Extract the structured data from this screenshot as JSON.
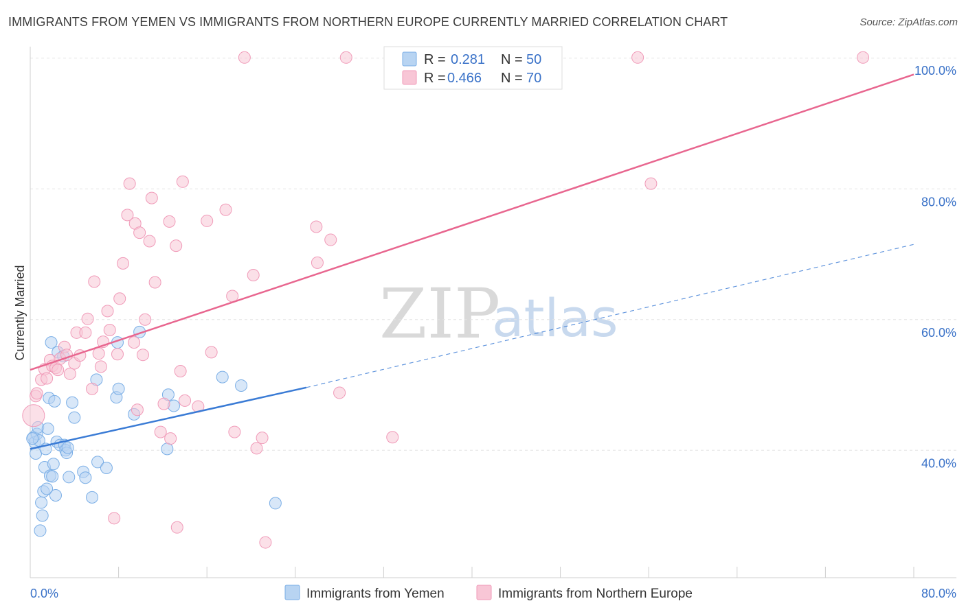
{
  "header": {
    "title": "IMMIGRANTS FROM YEMEN VS IMMIGRANTS FROM NORTHERN EUROPE CURRENTLY MARRIED CORRELATION CHART",
    "source": "Source: ZipAtlas.com"
  },
  "watermark": {
    "zip": "ZIP",
    "atlas": "atlas"
  },
  "legend": {
    "items": [
      {
        "r_label": "R =",
        "r_value": "0.281",
        "n_label": "N =",
        "n_value": "50",
        "fill": "#b8d4f2",
        "stroke": "#7aaee6"
      },
      {
        "r_label": "R =",
        "r_value": "0.466",
        "n_label": "N =",
        "n_value": "70",
        "fill": "#f8c6d6",
        "stroke": "#f09ab8"
      }
    ]
  },
  "bottom_legend": {
    "items": [
      {
        "label": "Immigrants from Yemen",
        "fill": "#b8d4f2",
        "stroke": "#7aaee6"
      },
      {
        "label": "Immigrants from Northern Europe",
        "fill": "#f8c6d6",
        "stroke": "#f09ab8"
      }
    ]
  },
  "chart_data": {
    "type": "scatter",
    "title": "IMMIGRANTS FROM YEMEN VS IMMIGRANTS FROM NORTHERN EUROPE CURRENTLY MARRIED CORRELATION CHART",
    "xlabel": "",
    "ylabel": "Currently Married",
    "xlim": [
      0,
      80
    ],
    "ylim": [
      22,
      102
    ],
    "x_tick_labels": [
      {
        "value": 0,
        "label": "0.0%"
      },
      {
        "value": 80,
        "label": "80.0%"
      }
    ],
    "x_minor_ticks": [
      0,
      8,
      16,
      24,
      32,
      40,
      48,
      56,
      64,
      72,
      80
    ],
    "y_ticks": [
      {
        "value": 100,
        "label": "100.0%"
      },
      {
        "value": 80,
        "label": "80.0%"
      },
      {
        "value": 60,
        "label": "60.0%"
      },
      {
        "value": 40,
        "label": "40.0%"
      }
    ],
    "series": [
      {
        "name": "Immigrants from Yemen",
        "color": "#3a7bd5",
        "fill": "#b8d4f2",
        "stroke": "#7aaee6",
        "trend": {
          "x0": 0,
          "y0": 40.2,
          "x1": 25,
          "y1": 49.6,
          "dash_x1": 80,
          "dash_y1": 71.5
        },
        "points": [
          [
            0.3,
            42.0
          ],
          [
            0.4,
            41.2
          ],
          [
            0.5,
            39.5
          ],
          [
            0.6,
            42.5
          ],
          [
            0.7,
            43.5
          ],
          [
            0.8,
            41.5
          ],
          [
            0.9,
            27.7
          ],
          [
            1.0,
            32.0
          ],
          [
            1.1,
            30.0
          ],
          [
            1.2,
            33.7
          ],
          [
            1.3,
            37.4
          ],
          [
            1.4,
            40.2
          ],
          [
            1.5,
            34.1
          ],
          [
            1.6,
            43.3
          ],
          [
            1.7,
            48.0
          ],
          [
            1.8,
            36.1
          ],
          [
            1.9,
            56.5
          ],
          [
            2.0,
            36.0
          ],
          [
            2.1,
            37.9
          ],
          [
            2.2,
            47.5
          ],
          [
            2.3,
            33.1
          ],
          [
            2.4,
            41.3
          ],
          [
            2.5,
            55.0
          ],
          [
            2.7,
            40.8
          ],
          [
            3.0,
            54.4
          ],
          [
            3.1,
            40.8
          ],
          [
            3.2,
            40.0
          ],
          [
            3.3,
            39.6
          ],
          [
            3.4,
            40.4
          ],
          [
            3.5,
            35.9
          ],
          [
            3.8,
            47.3
          ],
          [
            4.0,
            45.0
          ],
          [
            4.8,
            36.7
          ],
          [
            5.0,
            35.8
          ],
          [
            5.6,
            32.8
          ],
          [
            6.0,
            50.8
          ],
          [
            6.1,
            38.2
          ],
          [
            6.9,
            37.3
          ],
          [
            7.8,
            48.1
          ],
          [
            7.9,
            56.5
          ],
          [
            8.0,
            49.4
          ],
          [
            9.4,
            45.5
          ],
          [
            9.9,
            58.1
          ],
          [
            12.4,
            40.2
          ],
          [
            12.5,
            48.5
          ],
          [
            13.0,
            46.8
          ],
          [
            17.4,
            51.2
          ],
          [
            19.1,
            49.9
          ],
          [
            22.2,
            31.9
          ],
          [
            0.2,
            41.8
          ]
        ]
      },
      {
        "name": "Immigrants from Northern Europe",
        "color": "#e8668f",
        "fill": "#f8c6d6",
        "stroke": "#f09ab8",
        "trend": {
          "x0": 0,
          "y0": 52.3,
          "x1": 80,
          "y1": 97.5
        },
        "points": [
          [
            0.3,
            45.3
          ],
          [
            0.5,
            48.3
          ],
          [
            0.6,
            48.7
          ],
          [
            1.0,
            50.8
          ],
          [
            1.3,
            52.4
          ],
          [
            1.5,
            51.0
          ],
          [
            1.8,
            53.8
          ],
          [
            2.0,
            52.9
          ],
          [
            2.3,
            52.6
          ],
          [
            2.5,
            52.3
          ],
          [
            2.7,
            54.0
          ],
          [
            3.1,
            55.8
          ],
          [
            3.3,
            54.6
          ],
          [
            3.6,
            51.7
          ],
          [
            4.0,
            53.3
          ],
          [
            4.2,
            58.0
          ],
          [
            4.5,
            54.5
          ],
          [
            5.0,
            58.0
          ],
          [
            5.2,
            60.1
          ],
          [
            5.6,
            49.4
          ],
          [
            5.8,
            65.8
          ],
          [
            6.2,
            54.8
          ],
          [
            6.4,
            52.8
          ],
          [
            6.6,
            56.6
          ],
          [
            7.0,
            61.3
          ],
          [
            7.2,
            58.4
          ],
          [
            7.6,
            29.6
          ],
          [
            7.9,
            54.7
          ],
          [
            8.1,
            63.2
          ],
          [
            8.4,
            68.6
          ],
          [
            8.8,
            76.0
          ],
          [
            9.0,
            80.8
          ],
          [
            9.4,
            56.5
          ],
          [
            9.5,
            74.7
          ],
          [
            9.7,
            46.2
          ],
          [
            9.9,
            73.3
          ],
          [
            10.2,
            54.6
          ],
          [
            10.4,
            60.0
          ],
          [
            10.8,
            72.0
          ],
          [
            11.0,
            78.6
          ],
          [
            11.3,
            65.7
          ],
          [
            11.8,
            42.8
          ],
          [
            12.1,
            47.1
          ],
          [
            12.6,
            75.0
          ],
          [
            12.7,
            41.8
          ],
          [
            13.2,
            71.3
          ],
          [
            13.3,
            28.2
          ],
          [
            13.6,
            52.1
          ],
          [
            13.8,
            81.1
          ],
          [
            14.0,
            47.6
          ],
          [
            15.2,
            46.7
          ],
          [
            16.0,
            75.1
          ],
          [
            16.4,
            55.0
          ],
          [
            17.7,
            76.8
          ],
          [
            18.3,
            63.6
          ],
          [
            18.5,
            42.8
          ],
          [
            19.4,
            100.1
          ],
          [
            20.2,
            66.8
          ],
          [
            20.5,
            40.3
          ],
          [
            21.0,
            41.9
          ],
          [
            21.3,
            25.9
          ],
          [
            25.9,
            74.2
          ],
          [
            26.0,
            68.7
          ],
          [
            27.2,
            72.2
          ],
          [
            28.0,
            48.8
          ],
          [
            28.6,
            100.1
          ],
          [
            32.8,
            42.0
          ],
          [
            55.0,
            100.1
          ],
          [
            56.2,
            80.8
          ],
          [
            75.4,
            100.1
          ]
        ]
      }
    ]
  }
}
